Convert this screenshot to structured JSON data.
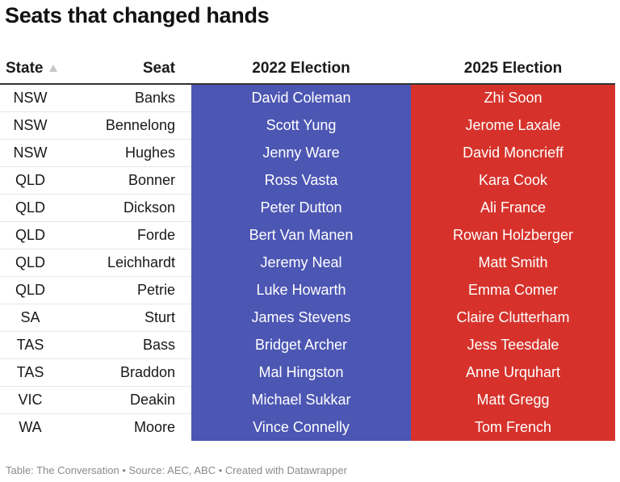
{
  "title": "Seats that changed hands",
  "columns": {
    "state": "State",
    "seat": "Seat",
    "e2022": "2022 Election",
    "e2025": "2025 Election"
  },
  "colors": {
    "e2022": "#4c56b3",
    "e2025": "#d6322b"
  },
  "sort": {
    "column": "State",
    "direction": "ascending",
    "indicator": "triangle-up-icon"
  },
  "chart_data": {
    "type": "table",
    "title": "Seats that changed hands",
    "columns": [
      "State",
      "Seat",
      "2022 Election",
      "2025 Election"
    ],
    "rows": [
      [
        "NSW",
        "Banks",
        "David Coleman",
        "Zhi Soon"
      ],
      [
        "NSW",
        "Bennelong",
        "Scott Yung",
        "Jerome Laxale"
      ],
      [
        "NSW",
        "Hughes",
        "Jenny Ware",
        "David Moncrieff"
      ],
      [
        "QLD",
        "Bonner",
        "Ross Vasta",
        "Kara Cook"
      ],
      [
        "QLD",
        "Dickson",
        "Peter Dutton",
        "Ali France"
      ],
      [
        "QLD",
        "Forde",
        "Bert Van Manen",
        "Rowan Holzberger"
      ],
      [
        "QLD",
        "Leichhardt",
        "Jeremy Neal",
        "Matt Smith"
      ],
      [
        "QLD",
        "Petrie",
        "Luke Howarth",
        "Emma Comer"
      ],
      [
        "SA",
        "Sturt",
        "James Stevens",
        "Claire Clutterham"
      ],
      [
        "TAS",
        "Bass",
        "Bridget Archer",
        "Jess Teesdale"
      ],
      [
        "TAS",
        "Braddon",
        "Mal Hingston",
        "Anne Urquhart"
      ],
      [
        "VIC",
        "Deakin",
        "Michael Sukkar",
        "Matt Gregg"
      ],
      [
        "WA",
        "Moore",
        "Vince Connelly",
        "Tom French"
      ]
    ]
  },
  "footer": "Table: The Conversation • Source: AEC, ABC • Created with Datawrapper"
}
